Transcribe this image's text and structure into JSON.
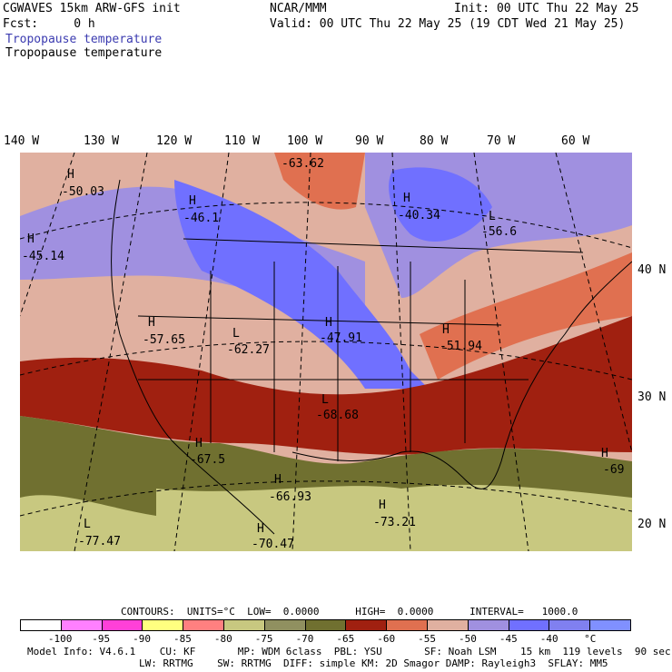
{
  "header": {
    "line1_left": "CGWAVES 15km ARW-GFS init",
    "line1_mid": "NCAR/MMM",
    "line1_right": "Init: 00 UTC Thu 22 May 25",
    "line2_left": "Fcst:     0 h",
    "line2_right": "Valid: 00 UTC Thu 22 May 25 (19 CDT Wed 21 May 25)",
    "field_name_colored": "Tropopause temperature",
    "field_name_contour": "Tropopause temperature"
  },
  "lon_labels": [
    "140 W",
    "130 W",
    "120 W",
    "110 W",
    "100 W",
    "90 W",
    "80 W",
    "70 W",
    "60 W"
  ],
  "lat_labels": [
    "40 N",
    "30 N",
    "20 N"
  ],
  "map_labels": [
    {
      "sym": "H",
      "val": "-50.03"
    },
    {
      "sym": "H",
      "val": "-46.1"
    },
    {
      "sym": "",
      "val": "-63.62"
    },
    {
      "sym": "H",
      "val": "-40.34"
    },
    {
      "sym": "L",
      "val": "-56.6"
    },
    {
      "sym": "H",
      "val": "-45.14"
    },
    {
      "sym": "H",
      "val": "-57.65"
    },
    {
      "sym": "L",
      "val": "-62.27"
    },
    {
      "sym": "H",
      "val": "-47.91"
    },
    {
      "sym": "H",
      "val": "-51.94"
    },
    {
      "sym": "L",
      "val": "-68.68"
    },
    {
      "sym": "H",
      "val": "-67.5"
    },
    {
      "sym": "H",
      "val": "-66.93"
    },
    {
      "sym": "H",
      "val": "-73.21"
    },
    {
      "sym": "H",
      "val": "-69"
    },
    {
      "sym": "L",
      "val": "-77.47"
    },
    {
      "sym": "H",
      "val": "-70.47"
    }
  ],
  "contours_line": "CONTOURS:  UNITS=°C  LOW=  0.0000      HIGH=  0.0000      INTERVAL=   1000.0",
  "colorbar": {
    "colors": [
      "#ffffff",
      "#ff80ff",
      "#ff40d8",
      "#ffff80",
      "#ff8080",
      "#c8c880",
      "#909060",
      "#707030",
      "#a02010",
      "#e07050",
      "#e0b0a0",
      "#a090e0",
      "#7070ff",
      "#8080f0",
      "#8090ff"
    ],
    "labels": [
      "-100",
      "-95",
      "-90",
      "-85",
      "-80",
      "-75",
      "-70",
      "-65",
      "-60",
      "-55",
      "-50",
      "-45",
      "-40",
      "°C"
    ]
  },
  "footer": {
    "line1": "Model Info: V4.6.1    CU: KF       MP: WDM 6class  PBL: YSU       SF: Noah LSM    15 km  119 levels  90 sec",
    "line2": "LW: RRTMG    SW: RRTMG  DIFF: simple KM: 2D Smagor DAMP: Rayleigh3  SFLAY: MM5"
  }
}
